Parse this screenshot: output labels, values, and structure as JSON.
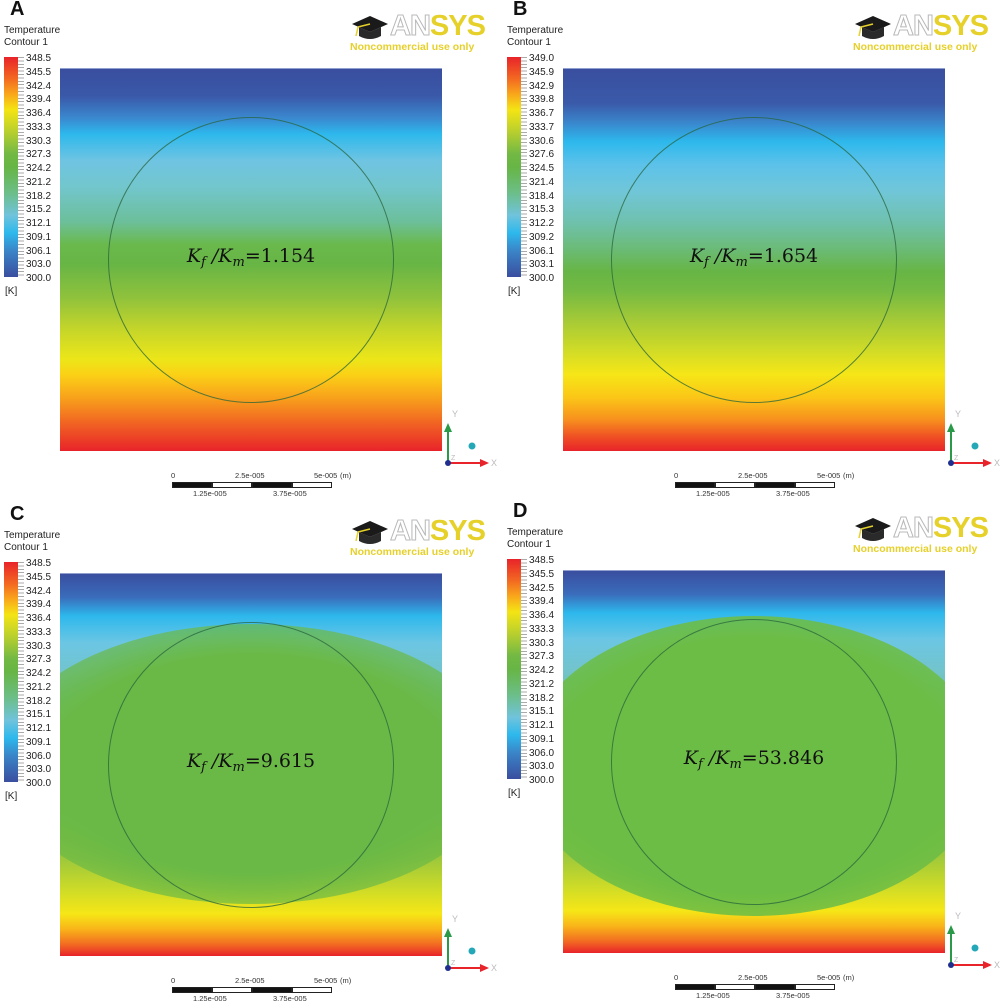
{
  "legend": {
    "title_line1": "Temperature",
    "title_line2": "Contour 1",
    "unit": "[K]"
  },
  "logo": {
    "brand_an": "AN",
    "brand_sys": "SYS",
    "subtitle": "Noncommercial use only",
    "icon": "graduation-cap-icon",
    "colors": {
      "yellow": "#e6d02a",
      "outline": "#b8b8b8"
    }
  },
  "scalebar": {
    "top_labels": [
      "0",
      "2.5e-005",
      "5e-005",
      "(m)"
    ],
    "bottom_labels": [
      "1.25e-005",
      "3.75e-005"
    ]
  },
  "axes": {
    "x": "X",
    "y": "Y",
    "z": "Z",
    "colors": {
      "x": "#e8232a",
      "y": "#2a9a48",
      "z": "#1f2f8f",
      "dot": "#24a8b8"
    }
  },
  "panels": [
    {
      "letter": "A",
      "ratio_label": "K_f / K_m",
      "ratio_value": "1.154",
      "ticks": [
        "348.5",
        "345.5",
        "342.4",
        "339.4",
        "336.4",
        "333.3",
        "330.3",
        "327.3",
        "324.2",
        "321.2",
        "318.2",
        "315.2",
        "312.1",
        "309.1",
        "306.1",
        "303.0",
        "300.0"
      ]
    },
    {
      "letter": "B",
      "ratio_label": "K_f / K_m",
      "ratio_value": "1.654",
      "ticks": [
        "349.0",
        "345.9",
        "342.9",
        "339.8",
        "336.7",
        "333.7",
        "330.6",
        "327.6",
        "324.5",
        "321.4",
        "318.4",
        "315.3",
        "312.2",
        "309.2",
        "306.1",
        "303.1",
        "300.0"
      ]
    },
    {
      "letter": "C",
      "ratio_label": "K_f / K_m",
      "ratio_value": "9.615",
      "ticks": [
        "348.5",
        "345.5",
        "342.4",
        "339.4",
        "336.4",
        "333.3",
        "330.3",
        "327.3",
        "324.2",
        "321.2",
        "318.2",
        "315.1",
        "312.1",
        "309.1",
        "306.0",
        "303.0",
        "300.0"
      ]
    },
    {
      "letter": "D",
      "ratio_label": "K_f / K_m",
      "ratio_value": "53.846",
      "ticks": [
        "348.5",
        "345.5",
        "342.5",
        "339.4",
        "336.4",
        "333.3",
        "330.3",
        "327.3",
        "324.2",
        "321.2",
        "318.2",
        "315.1",
        "312.1",
        "309.1",
        "306.0",
        "303.0",
        "300.0"
      ]
    }
  ],
  "chart_data": [
    {
      "type": "heatmap",
      "panel": "A",
      "title": "Temperature Contour 1",
      "annotation": "Kf/Km = 1.154",
      "colorbar": {
        "min": 300.0,
        "max": 348.5,
        "unit": "K",
        "ticks": [
          348.5,
          345.5,
          342.4,
          339.4,
          336.4,
          333.3,
          330.3,
          327.3,
          324.2,
          321.2,
          318.2,
          315.2,
          312.1,
          309.1,
          306.1,
          303.0,
          300.0
        ]
      },
      "field_description": "Nearly linear vertical gradient: 300 K (blue) at top to 348.5 K (red) at bottom; circular inclusion barely distorts isotherms",
      "domain_extent_m": [
        0,
        5e-05
      ]
    },
    {
      "type": "heatmap",
      "panel": "B",
      "title": "Temperature Contour 1",
      "annotation": "Kf/Km = 1.654",
      "colorbar": {
        "min": 300.0,
        "max": 349.0,
        "unit": "K",
        "ticks": [
          349.0,
          345.9,
          342.9,
          339.8,
          336.7,
          333.7,
          330.6,
          327.6,
          324.5,
          321.4,
          318.4,
          315.3,
          312.2,
          309.2,
          306.1,
          303.1,
          300.0
        ]
      },
      "field_description": "Vertical gradient 300 K top to 349 K bottom with slight flattening inside inclusion",
      "domain_extent_m": [
        0,
        5e-05
      ]
    },
    {
      "type": "heatmap",
      "panel": "C",
      "title": "Temperature Contour 1",
      "annotation": "Kf/Km = 9.615",
      "colorbar": {
        "min": 300.0,
        "max": 348.5,
        "unit": "K",
        "ticks": [
          348.5,
          345.5,
          342.4,
          339.4,
          336.4,
          333.3,
          330.3,
          327.3,
          324.2,
          321.2,
          318.2,
          315.1,
          312.1,
          309.1,
          306.0,
          303.0,
          300.0
        ]
      },
      "field_description": "Inclusion nearly isothermal (~324 K green); isotherms compressed above and below the circle",
      "domain_extent_m": [
        0,
        5e-05
      ]
    },
    {
      "type": "heatmap",
      "panel": "D",
      "title": "Temperature Contour 1",
      "annotation": "Kf/Km = 53.846",
      "colorbar": {
        "min": 300.0,
        "max": 348.5,
        "unit": "K",
        "ticks": [
          348.5,
          345.5,
          342.5,
          339.4,
          336.4,
          333.3,
          330.3,
          327.3,
          324.2,
          321.2,
          318.2,
          315.1,
          312.1,
          309.1,
          306.0,
          303.0,
          300.0
        ]
      },
      "field_description": "Inclusion uniform ~324 K; strong isotherm crowding at top and bottom boundaries",
      "domain_extent_m": [
        0,
        5e-05
      ]
    }
  ]
}
